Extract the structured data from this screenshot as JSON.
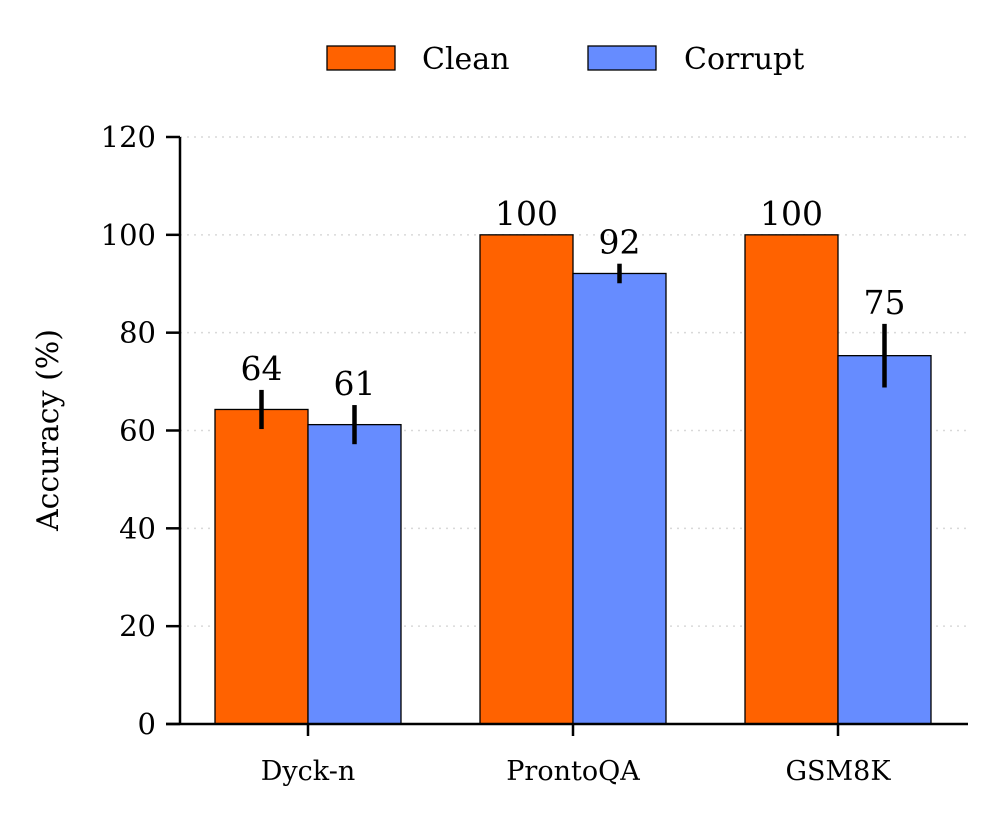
{
  "chart_data": {
    "type": "bar",
    "title": "",
    "xlabel": "",
    "ylabel": "Accuracy (%)",
    "ylim": [
      0,
      120
    ],
    "yticks": [
      0,
      20,
      40,
      60,
      80,
      100,
      120
    ],
    "grid": "horizontal-dotted",
    "legend_position": "top-center",
    "categories": [
      "Dyck-n",
      "ProntoQA",
      "GSM8K"
    ],
    "series": [
      {
        "name": "Clean",
        "color": "#ff6200",
        "values": [
          64.3,
          100,
          100
        ],
        "errors": [
          4,
          0,
          0
        ],
        "labels": [
          "64",
          "100",
          "100"
        ]
      },
      {
        "name": "Corrupt",
        "color": "#668cff",
        "values": [
          61.2,
          92.1,
          75.3
        ],
        "errors": [
          4,
          2,
          6.5
        ],
        "labels": [
          "61",
          "92",
          "75"
        ]
      }
    ]
  }
}
